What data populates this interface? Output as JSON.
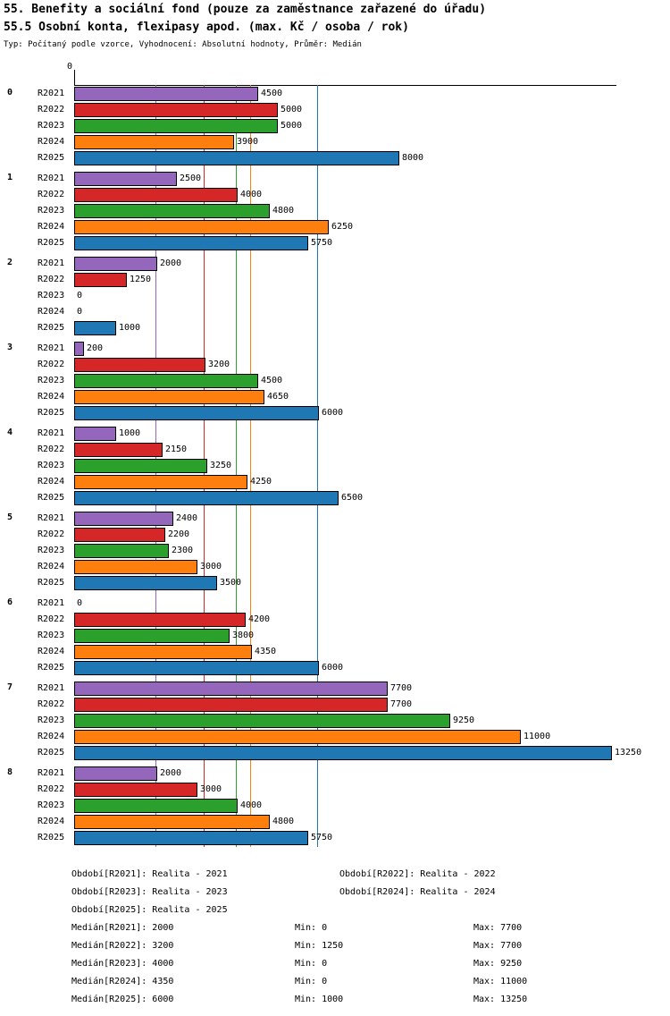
{
  "title": "55. Benefity a sociální fond (pouze za zaměstnance zařazené do úřadu)",
  "subtitle": "55.5 Osobní konta, flexipasy apod. (max. Kč / osoba / rok)",
  "meta": "Typ: Počítaný podle vzorce, Vyhodnocení: Absolutní hodnoty, Průměr: Medián",
  "chart_data": {
    "type": "bar",
    "orientation": "horizontal",
    "axis_top_label": "0",
    "xlim": [
      0,
      13250
    ],
    "grid": false,
    "categories": [
      "0",
      "1",
      "2",
      "3",
      "4",
      "5",
      "6",
      "7",
      "8"
    ],
    "series": [
      {
        "name": "R2021",
        "color": "#9467bd",
        "median": 2000,
        "values": [
          4500,
          2500,
          2000,
          200,
          1000,
          2400,
          0,
          7700,
          2000
        ]
      },
      {
        "name": "R2022",
        "color": "#d62728",
        "median": 3200,
        "values": [
          5000,
          4000,
          1250,
          3200,
          2150,
          2200,
          4200,
          7700,
          3000
        ]
      },
      {
        "name": "R2023",
        "color": "#2ca02c",
        "median": 4000,
        "values": [
          5000,
          4800,
          0,
          4500,
          3250,
          2300,
          3800,
          9250,
          4000
        ]
      },
      {
        "name": "R2024",
        "color": "#ff7f0e",
        "median": 4350,
        "values": [
          3900,
          6250,
          0,
          4650,
          4250,
          3000,
          4350,
          11000,
          4800
        ]
      },
      {
        "name": "R2025",
        "color": "#1f77b4",
        "median": 6000,
        "values": [
          8000,
          5750,
          1000,
          6000,
          6500,
          3500,
          6000,
          13250,
          5750
        ]
      }
    ],
    "legend": [
      "Období[R2021]: Realita - 2021",
      "Období[R2022]: Realita - 2022",
      "Období[R2023]: Realita - 2023",
      "Období[R2024]: Realita - 2024",
      "Období[R2025]: Realita - 2025"
    ],
    "stats": [
      {
        "median": "Medián[R2021]: 2000",
        "min": "Min: 0",
        "max": "Max: 7700"
      },
      {
        "median": "Medián[R2022]: 3200",
        "min": "Min: 1250",
        "max": "Max: 7700"
      },
      {
        "median": "Medián[R2023]: 4000",
        "min": "Min: 0",
        "max": "Max: 9250"
      },
      {
        "median": "Medián[R2024]: 4350",
        "min": "Min: 0",
        "max": "Max: 11000"
      },
      {
        "median": "Medián[R2025]: 6000",
        "min": "Min: 1000",
        "max": "Max: 13250"
      }
    ]
  }
}
